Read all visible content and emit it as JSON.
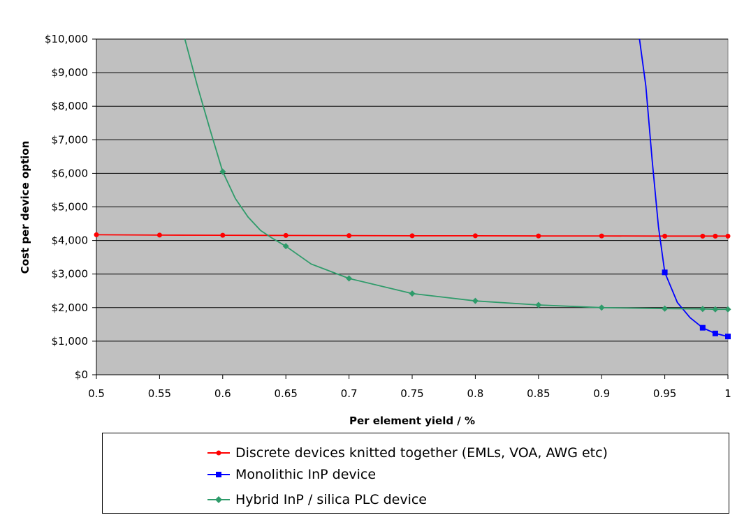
{
  "chart_data": {
    "type": "line",
    "title": "",
    "xlabel": "Per element yield / %",
    "ylabel": "Cost per device option",
    "xlim": [
      0.5,
      1
    ],
    "ylim": [
      0,
      10000
    ],
    "x_ticks": [
      "0.5",
      "0.55",
      "0.6",
      "0.65",
      "0.7",
      "0.75",
      "0.8",
      "0.85",
      "0.9",
      "0.95",
      "1"
    ],
    "y_ticks": [
      "$0",
      "$1,000",
      "$2,000",
      "$3,000",
      "$4,000",
      "$5,000",
      "$6,000",
      "$7,000",
      "$8,000",
      "$9,000",
      "$10,000"
    ],
    "plot_background": "#c0c0c0",
    "grid": "horizontal",
    "legend_position": "bottom",
    "series": [
      {
        "name": "Discrete devices knitted together (EMLs, VOA, AWG etc)",
        "color": "#ff0000",
        "marker": "circle",
        "x": [
          0.5,
          0.55,
          0.6,
          0.65,
          0.7,
          0.75,
          0.8,
          0.85,
          0.9,
          0.95,
          0.98,
          0.99,
          1.0
        ],
        "y": [
          4170,
          4160,
          4155,
          4150,
          4145,
          4140,
          4140,
          4135,
          4135,
          4130,
          4130,
          4130,
          4130
        ]
      },
      {
        "name": "Monolithic InP device",
        "color": "#0000ff",
        "marker": "square",
        "x": [
          0.93,
          0.935,
          0.94,
          0.945,
          0.95,
          0.96,
          0.97,
          0.98,
          0.99,
          1.0
        ],
        "y": [
          10000,
          8600,
          6400,
          4400,
          3050,
          2150,
          1700,
          1400,
          1230,
          1140
        ],
        "point_x": [
          0.95,
          0.98,
          0.99,
          1.0
        ],
        "point_y": [
          3050,
          1400,
          1230,
          1140
        ]
      },
      {
        "name": "Hybrid InP / silica PLC device",
        "color": "#2e9b6a",
        "marker": "diamond",
        "x": [
          0.57,
          0.58,
          0.59,
          0.6,
          0.61,
          0.62,
          0.63,
          0.64,
          0.65,
          0.67,
          0.7,
          0.75,
          0.8,
          0.85,
          0.9,
          0.95,
          0.98,
          0.99,
          1.0
        ],
        "y": [
          10000,
          8600,
          7300,
          6050,
          5250,
          4700,
          4300,
          4050,
          3830,
          3300,
          2870,
          2420,
          2200,
          2080,
          2000,
          1970,
          1960,
          1950,
          1950
        ],
        "point_x": [
          0.6,
          0.65,
          0.7,
          0.75,
          0.8,
          0.85,
          0.9,
          0.95,
          0.98,
          0.99,
          1.0
        ],
        "point_y": [
          6050,
          3830,
          2870,
          2420,
          2200,
          2080,
          2000,
          1970,
          1960,
          1950,
          1950
        ]
      }
    ]
  }
}
